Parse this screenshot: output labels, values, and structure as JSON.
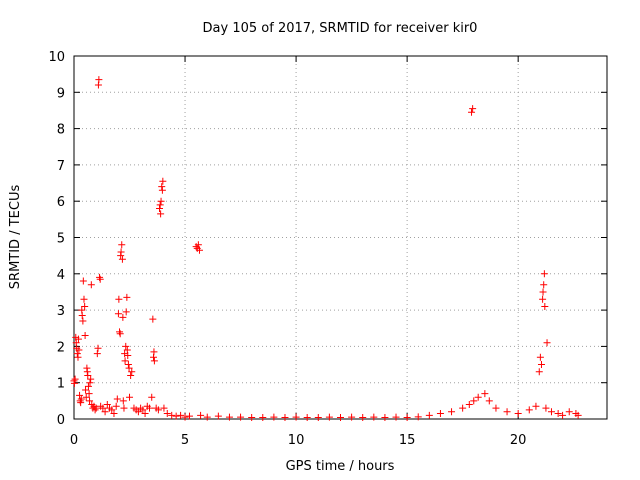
{
  "chart_data": {
    "type": "scatter",
    "title": "Day 105 of 2017, SRMTID for receiver kir0",
    "xlabel": "GPS time / hours",
    "ylabel": "SRMTID / TECUs",
    "xlim": [
      0,
      24
    ],
    "ylim": [
      0,
      10
    ],
    "x_ticks": [
      "0",
      "5",
      "10",
      "15",
      "20"
    ],
    "y_ticks": [
      "0",
      "1",
      "2",
      "3",
      "4",
      "5",
      "6",
      "7",
      "8",
      "9",
      "10"
    ],
    "grid": true,
    "marker": "+",
    "series": [
      {
        "name": "SRMTID",
        "color": "#ff0000",
        "points": [
          [
            0.0,
            1.05
          ],
          [
            0.02,
            0.98
          ],
          [
            0.05,
            1.1
          ],
          [
            0.08,
            2.25
          ],
          [
            0.1,
            2.1
          ],
          [
            0.12,
            1.95
          ],
          [
            0.15,
            1.8
          ],
          [
            0.18,
            1.7
          ],
          [
            0.2,
            2.2
          ],
          [
            0.22,
            1.9
          ],
          [
            0.25,
            0.65
          ],
          [
            0.28,
            0.5
          ],
          [
            0.3,
            0.45
          ],
          [
            0.33,
            0.55
          ],
          [
            0.35,
            3.0
          ],
          [
            0.37,
            2.85
          ],
          [
            0.4,
            2.7
          ],
          [
            0.42,
            3.8
          ],
          [
            0.45,
            3.3
          ],
          [
            0.48,
            3.1
          ],
          [
            0.5,
            2.3
          ],
          [
            0.52,
            0.8
          ],
          [
            0.55,
            0.6
          ],
          [
            0.58,
            1.4
          ],
          [
            0.6,
            1.3
          ],
          [
            0.62,
            1.2
          ],
          [
            0.65,
            0.9
          ],
          [
            0.68,
            0.7
          ],
          [
            0.7,
            0.5
          ],
          [
            0.72,
            1.0
          ],
          [
            0.75,
            1.1
          ],
          [
            0.78,
            3.7
          ],
          [
            0.8,
            0.4
          ],
          [
            0.85,
            0.3
          ],
          [
            0.9,
            0.35
          ],
          [
            0.95,
            0.25
          ],
          [
            1.0,
            0.3
          ],
          [
            1.05,
            1.8
          ],
          [
            1.08,
            1.95
          ],
          [
            1.1,
            9.2
          ],
          [
            1.12,
            9.35
          ],
          [
            1.15,
            3.9
          ],
          [
            1.18,
            3.85
          ],
          [
            1.2,
            0.35
          ],
          [
            1.3,
            0.3
          ],
          [
            1.4,
            0.2
          ],
          [
            1.5,
            0.4
          ],
          [
            1.6,
            0.3
          ],
          [
            1.7,
            0.25
          ],
          [
            1.8,
            0.15
          ],
          [
            1.9,
            0.35
          ],
          [
            1.95,
            0.55
          ],
          [
            2.0,
            2.9
          ],
          [
            2.02,
            3.3
          ],
          [
            2.05,
            2.4
          ],
          [
            2.08,
            2.35
          ],
          [
            2.1,
            4.5
          ],
          [
            2.12,
            4.6
          ],
          [
            2.15,
            4.8
          ],
          [
            2.18,
            4.4
          ],
          [
            2.2,
            2.8
          ],
          [
            2.22,
            0.5
          ],
          [
            2.25,
            0.3
          ],
          [
            2.28,
            1.8
          ],
          [
            2.3,
            1.6
          ],
          [
            2.33,
            2.0
          ],
          [
            2.35,
            2.95
          ],
          [
            2.38,
            3.35
          ],
          [
            2.4,
            1.9
          ],
          [
            2.42,
            1.75
          ],
          [
            2.45,
            1.5
          ],
          [
            2.48,
            1.4
          ],
          [
            2.5,
            0.6
          ],
          [
            2.55,
            1.2
          ],
          [
            2.6,
            1.3
          ],
          [
            2.7,
            0.3
          ],
          [
            2.8,
            0.25
          ],
          [
            2.9,
            0.2
          ],
          [
            3.0,
            0.3
          ],
          [
            3.1,
            0.25
          ],
          [
            3.2,
            0.15
          ],
          [
            3.3,
            0.35
          ],
          [
            3.4,
            0.3
          ],
          [
            3.5,
            0.6
          ],
          [
            3.55,
            2.75
          ],
          [
            3.58,
            1.7
          ],
          [
            3.6,
            1.85
          ],
          [
            3.62,
            1.6
          ],
          [
            3.7,
            0.3
          ],
          [
            3.8,
            0.25
          ],
          [
            3.85,
            5.8
          ],
          [
            3.88,
            5.9
          ],
          [
            3.9,
            5.65
          ],
          [
            3.92,
            6.0
          ],
          [
            3.95,
            6.4
          ],
          [
            3.98,
            6.3
          ],
          [
            4.0,
            6.55
          ],
          [
            4.05,
            0.3
          ],
          [
            4.2,
            0.15
          ],
          [
            4.4,
            0.1
          ],
          [
            4.6,
            0.08
          ],
          [
            4.8,
            0.1
          ],
          [
            5.0,
            0.05
          ],
          [
            5.2,
            0.08
          ],
          [
            5.5,
            4.75
          ],
          [
            5.55,
            4.7
          ],
          [
            5.6,
            4.8
          ],
          [
            5.65,
            4.65
          ],
          [
            5.7,
            0.1
          ],
          [
            6.0,
            0.05
          ],
          [
            6.5,
            0.08
          ],
          [
            7.0,
            0.05
          ],
          [
            7.5,
            0.05
          ],
          [
            8.0,
            0.04
          ],
          [
            8.5,
            0.04
          ],
          [
            9.0,
            0.05
          ],
          [
            9.5,
            0.04
          ],
          [
            10.0,
            0.05
          ],
          [
            10.5,
            0.04
          ],
          [
            11.0,
            0.04
          ],
          [
            11.5,
            0.05
          ],
          [
            12.0,
            0.04
          ],
          [
            12.5,
            0.05
          ],
          [
            13.0,
            0.04
          ],
          [
            13.5,
            0.05
          ],
          [
            14.0,
            0.04
          ],
          [
            14.5,
            0.05
          ],
          [
            15.0,
            0.04
          ],
          [
            15.5,
            0.06
          ],
          [
            16.0,
            0.1
          ],
          [
            16.5,
            0.15
          ],
          [
            17.0,
            0.2
          ],
          [
            17.5,
            0.3
          ],
          [
            17.8,
            0.4
          ],
          [
            17.9,
            8.45
          ],
          [
            17.95,
            8.55
          ],
          [
            18.0,
            0.5
          ],
          [
            18.2,
            0.6
          ],
          [
            18.5,
            0.7
          ],
          [
            18.7,
            0.5
          ],
          [
            19.0,
            0.3
          ],
          [
            19.5,
            0.2
          ],
          [
            20.0,
            0.15
          ],
          [
            20.5,
            0.25
          ],
          [
            20.8,
            0.35
          ],
          [
            20.95,
            1.3
          ],
          [
            21.0,
            1.7
          ],
          [
            21.05,
            1.5
          ],
          [
            21.1,
            3.3
          ],
          [
            21.12,
            3.5
          ],
          [
            21.15,
            3.7
          ],
          [
            21.18,
            4.0
          ],
          [
            21.2,
            3.1
          ],
          [
            21.25,
            0.3
          ],
          [
            21.3,
            2.1
          ],
          [
            21.5,
            0.2
          ],
          [
            21.8,
            0.15
          ],
          [
            22.0,
            0.1
          ],
          [
            22.3,
            0.2
          ],
          [
            22.6,
            0.15
          ],
          [
            22.7,
            0.1
          ]
        ]
      }
    ]
  }
}
